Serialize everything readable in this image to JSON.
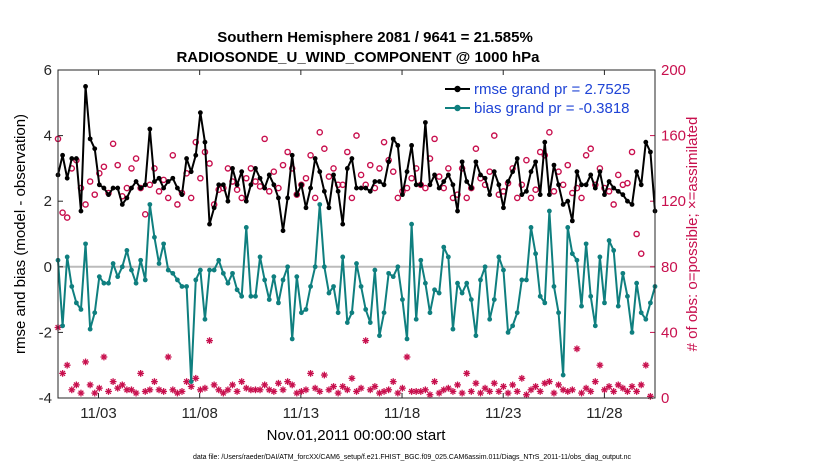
{
  "chart_data": {
    "type": "line",
    "title_line1": "Southern Hemisphere 2081 / 9641 = 21.585%",
    "title_line2": "RADIOSONDE_U_WIND_COMPONENT @ 1000 hPa",
    "xlabel": "Nov.01,2011 00:00:00 start",
    "ylabel_left": "rmse and bias (model - observation)",
    "ylabel_right": "# of obs: o=possible; ×=assimilated",
    "footnote": "data file: /Users/raeder/DAI/ATM_forcXX/CAM6_setup/f.e21.FHIST_BGC.f09_025.CAM6assim.011/Diags_NTrS_2011-11/obs_diag_output.nc",
    "xlim": [
      0,
      118
    ],
    "ylim_left": [
      -4,
      6
    ],
    "ylim_right": [
      0,
      200
    ],
    "x_ticks": [
      8,
      28,
      48,
      68,
      88,
      108
    ],
    "x_tick_labels": [
      "11/03",
      "11/08",
      "11/13",
      "11/18",
      "11/23",
      "11/28"
    ],
    "y_ticks_left": [
      -4,
      -2,
      0,
      2,
      4,
      6
    ],
    "y_ticks_right": [
      0,
      40,
      80,
      120,
      160,
      200
    ],
    "grid": false,
    "legend": [
      {
        "label": "rmse grand pr = 2.7525",
        "color": "#000000"
      },
      {
        "label": "bias grand pr = -0.3818",
        "color": "#0f7f7f"
      }
    ],
    "colors": {
      "rmse": "#000000",
      "bias": "#0f7f7f",
      "obs": "#c8104e",
      "zero_line": "#bbbbbb",
      "legend_text": "#1f44d6"
    },
    "series": [
      {
        "name": "rmse",
        "axis": "left",
        "values": [
          2.8,
          3.4,
          2.7,
          3.3,
          3.3,
          1.7,
          5.5,
          3.9,
          3.6,
          2.5,
          2.4,
          2.2,
          2.4,
          2.4,
          1.9,
          2.1,
          2.4,
          2.6,
          2.4,
          2.5,
          4.2,
          2.6,
          2.7,
          2.4,
          2.6,
          2.7,
          2.4,
          2.2,
          3.3,
          2.9,
          3.4,
          4.7,
          3.8,
          1.3,
          1.8,
          2.5,
          2.5,
          2.0,
          3.0,
          2.5,
          2.9,
          2.0,
          2.5,
          3.0,
          2.7,
          2.4,
          2.8,
          2.5,
          2.1,
          1.1,
          2.1,
          3.4,
          2.2,
          2.5,
          1.8,
          2.4,
          3.3,
          2.9,
          2.3,
          1.8,
          2.8,
          2.3,
          1.3,
          3.0,
          3.3,
          2.4,
          2.4,
          2.4,
          2.3,
          2.6,
          2.6,
          2.5,
          3.2,
          3.9,
          3.7,
          2.2,
          2.9,
          3.7,
          2.5,
          2.5,
          4.4,
          2.5,
          2.8,
          2.4,
          2.6,
          2.8,
          2.5,
          1.7,
          3.2,
          2.6,
          2.4,
          3.2,
          2.8,
          2.7,
          2.2,
          2.9,
          2.5,
          1.8,
          2.6,
          2.9,
          3.3,
          2.2,
          2.3,
          2.9,
          3.2,
          2.2,
          3.8,
          2.2,
          3.1,
          2.5,
          1.9,
          2.0,
          1.4,
          2.9,
          2.5,
          2.5,
          2.8,
          2.4,
          2.9,
          2.2,
          2.6,
          2.4,
          2.3,
          2.2,
          2.0,
          1.9,
          2.9,
          2.5,
          3.8,
          3.5,
          1.7
        ]
      },
      {
        "name": "bias",
        "axis": "left",
        "values": [
          0.2,
          -1.8,
          0.3,
          -0.6,
          -1.1,
          -1.3,
          0.7,
          -1.9,
          -1.4,
          -0.3,
          -0.5,
          -0.5,
          0.1,
          -0.3,
          0.0,
          0.5,
          -0.1,
          -0.5,
          0.2,
          -0.4,
          1.9,
          0.9,
          0.1,
          0.7,
          -0.1,
          -0.2,
          -0.4,
          -0.6,
          -0.6,
          -3.5,
          -0.4,
          -0.1,
          -1.6,
          -0.1,
          -0.1,
          0.2,
          -0.2,
          -0.5,
          -0.2,
          -0.7,
          -0.9,
          1.2,
          -0.9,
          -0.9,
          0.3,
          -0.4,
          -1.0,
          -0.3,
          -1.1,
          -0.4,
          0.0,
          -2.2,
          -0.3,
          -1.4,
          -1.3,
          -0.6,
          0.0,
          1.9,
          0.0,
          -0.8,
          -0.6,
          -1.4,
          0.3,
          -1.7,
          -1.4,
          0.1,
          -0.6,
          -1.3,
          -1.7,
          -0.1,
          -2.1,
          -1.4,
          -0.2,
          -0.3,
          0.0,
          -1.0,
          -2.2,
          1.3,
          -1.6,
          0.2,
          -0.5,
          -1.4,
          -0.7,
          -0.8,
          0.6,
          0.3,
          -1.9,
          -0.5,
          -0.8,
          -0.5,
          -1.0,
          -2.1,
          -0.4,
          0.0,
          -1.6,
          -1.0,
          0.3,
          -0.1,
          -2.0,
          -1.8,
          -1.4,
          -0.4,
          -0.4,
          1.2,
          0.4,
          -0.9,
          -1.1,
          1.7,
          -0.6,
          -1.4,
          -3.3,
          1.2,
          0.4,
          0.2,
          -1.2,
          0.7,
          -0.9,
          -1.8,
          0.3,
          -1.1,
          0.8,
          0.5,
          -1.2,
          -0.2,
          -0.9,
          -2.0,
          -0.5,
          -1.4,
          -1.6,
          -1.1,
          -0.6
        ]
      },
      {
        "name": "possible",
        "axis": "right",
        "values": [
          158,
          113,
          110,
          140,
          145,
          128,
          118,
          132,
          124,
          137,
          141,
          125,
          155,
          142,
          123,
          128,
          140,
          146,
          128,
          112,
          130,
          140,
          126,
          133,
          122,
          148,
          118,
          125,
          137,
          122,
          156,
          134,
          150,
          143,
          118,
          127,
          128,
          140,
          132,
          127,
          122,
          134,
          140,
          132,
          129,
          158,
          126,
          138,
          128,
          142,
          150,
          140,
          124,
          130,
          134,
          148,
          122,
          162,
          152,
          135,
          140,
          130,
          130,
          150,
          122,
          160,
          136,
          130,
          142,
          128,
          140,
          156,
          145,
          138,
          122,
          126,
          128,
          134,
          140,
          130,
          128,
          146,
          158,
          135,
          128,
          140,
          122,
          124,
          140,
          122,
          128,
          152,
          134,
          130,
          138,
          160,
          124,
          126,
          131,
          140,
          122,
          130,
          145,
          122,
          127,
          150,
          148,
          162,
          126,
          138,
          130,
          142,
          125,
          128,
          122,
          148,
          152,
          130,
          140,
          128,
          126,
          118,
          136,
          130,
          131,
          150,
          100,
          88
        ]
      },
      {
        "name": "assimilated",
        "axis": "right",
        "values": [
          43,
          15,
          20,
          5,
          8,
          3,
          22,
          8,
          3,
          6,
          25,
          4,
          10,
          6,
          8,
          5,
          5,
          3,
          15,
          4,
          5,
          10,
          5,
          4,
          25,
          5,
          3,
          4,
          10,
          7,
          12,
          5,
          6,
          35,
          8,
          5,
          3,
          5,
          8,
          4,
          10,
          6,
          5,
          5,
          5,
          8,
          5,
          4,
          9,
          5,
          10,
          8,
          3,
          4,
          5,
          15,
          6,
          4,
          14,
          5,
          7,
          3,
          7,
          5,
          12,
          4,
          6,
          35,
          5,
          7,
          3,
          4,
          5,
          10,
          3,
          6,
          25,
          4,
          4,
          4,
          5,
          2,
          10,
          3,
          5,
          6,
          4,
          8,
          3,
          15,
          4,
          9,
          3,
          6,
          4,
          9,
          4,
          7,
          3,
          8,
          4,
          12,
          2,
          5,
          7,
          4,
          9,
          10,
          3,
          8,
          5,
          4,
          5,
          30,
          3,
          6,
          4,
          10,
          20,
          5,
          7,
          4,
          8,
          6,
          4,
          7,
          4,
          8,
          20,
          1
        ]
      }
    ]
  }
}
